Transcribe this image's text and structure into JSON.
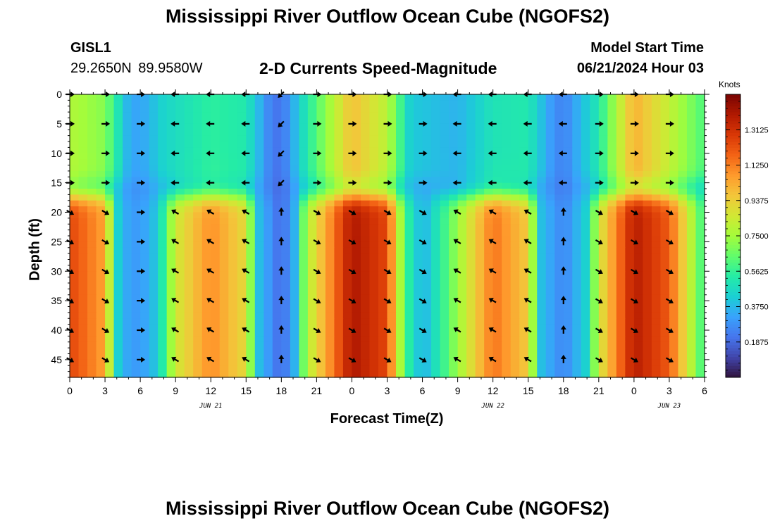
{
  "header": {
    "title": "Mississippi River Outflow Ocean Cube (NGOFS2)",
    "station_id": "GISL1",
    "station_coords": "29.2650N  89.9580W",
    "subtitle": "2-D Currents Speed-Magnitude",
    "model_label": "Model Start Time",
    "model_time": "06/21/2024 Hour 03"
  },
  "footer": {
    "title": "Mississippi River Outflow Ocean Cube (NGOFS2)"
  },
  "chart_data": {
    "type": "heatmap",
    "title": "2-D Currents Speed-Magnitude",
    "xlabel": "Forecast Time(Z)",
    "ylabel": "Depth (ft)",
    "colorbar_unit": "Knots",
    "x_range_hours": [
      0,
      54
    ],
    "y_range_ft": [
      0,
      48
    ],
    "x_ticks": [
      0,
      3,
      6,
      9,
      12,
      15,
      18,
      21,
      24,
      27,
      30,
      33,
      36,
      39,
      42,
      45,
      48,
      51,
      54
    ],
    "x_tick_labels": [
      "0",
      "3",
      "6",
      "9",
      "12",
      "15",
      "18",
      "21",
      "0",
      "3",
      "6",
      "9",
      "12",
      "15",
      "18",
      "21",
      "0",
      "3",
      "6"
    ],
    "y_ticks": [
      0,
      5,
      10,
      15,
      20,
      25,
      30,
      35,
      40,
      45
    ],
    "y_tick_labels": [
      "0",
      "5",
      "10",
      "15",
      "20",
      "25",
      "30",
      "35",
      "40",
      "45"
    ],
    "day_labels": [
      {
        "hour": 12,
        "label": "JUN 21"
      },
      {
        "hour": 36,
        "label": "JUN 22"
      },
      {
        "hour": 51,
        "label": "JUN 23"
      }
    ],
    "colorbar_range": [
      0.0,
      1.5
    ],
    "colorbar_ticks": [
      0.1875,
      0.375,
      0.5625,
      0.75,
      0.9375,
      1.125,
      1.3125
    ],
    "colorbar_tick_labels": [
      "0.1875",
      "0.3750",
      "0.5625",
      "0.7500",
      "0.9375",
      "1.1250",
      "1.3125"
    ],
    "colormap": [
      "#30123b",
      "#4145ab",
      "#4675ed",
      "#39a2fc",
      "#1bcfd4",
      "#24eca6",
      "#61fc6c",
      "#a4fc3b",
      "#d1e834",
      "#f3c63a",
      "#fe9b2d",
      "#f36315",
      "#d93806",
      "#b11901",
      "#7a0402"
    ],
    "surface_layer_speed_knots": [
      {
        "hour": 0,
        "speed": 0.78
      },
      {
        "hour": 3,
        "speed": 0.7
      },
      {
        "hour": 5,
        "speed": 0.35
      },
      {
        "hour": 6,
        "speed": 0.32
      },
      {
        "hour": 8,
        "speed": 0.45
      },
      {
        "hour": 12,
        "speed": 0.55
      },
      {
        "hour": 15,
        "speed": 0.52
      },
      {
        "hour": 17,
        "speed": 0.25
      },
      {
        "hour": 18,
        "speed": 0.2
      },
      {
        "hour": 20,
        "speed": 0.5
      },
      {
        "hour": 24,
        "speed": 0.98
      },
      {
        "hour": 27,
        "speed": 0.8
      },
      {
        "hour": 29,
        "speed": 0.42
      },
      {
        "hour": 33,
        "speed": 0.36
      },
      {
        "hour": 36,
        "speed": 0.5
      },
      {
        "hour": 39,
        "speed": 0.52
      },
      {
        "hour": 41,
        "speed": 0.3
      },
      {
        "hour": 42,
        "speed": 0.24
      },
      {
        "hour": 45,
        "speed": 0.52
      },
      {
        "hour": 48,
        "speed": 1.02
      },
      {
        "hour": 51,
        "speed": 0.82
      },
      {
        "hour": 54,
        "speed": 0.6
      }
    ],
    "lower_layer_speed_knots": [
      {
        "hour": 0,
        "speed": 1.25
      },
      {
        "hour": 3,
        "speed": 1.05
      },
      {
        "hour": 4,
        "speed": 0.45
      },
      {
        "hour": 5,
        "speed": 0.32
      },
      {
        "hour": 6,
        "speed": 0.3
      },
      {
        "hour": 7.5,
        "speed": 0.42
      },
      {
        "hour": 9,
        "speed": 0.85
      },
      {
        "hour": 12,
        "speed": 1.1
      },
      {
        "hour": 15,
        "speed": 0.9
      },
      {
        "hour": 16,
        "speed": 0.4
      },
      {
        "hour": 18,
        "speed": 0.18
      },
      {
        "hour": 19.5,
        "speed": 0.42
      },
      {
        "hour": 20,
        "speed": 0.75
      },
      {
        "hour": 24,
        "speed": 1.4
      },
      {
        "hour": 27,
        "speed": 1.25
      },
      {
        "hour": 28.5,
        "speed": 0.6
      },
      {
        "hour": 30,
        "speed": 0.35
      },
      {
        "hour": 32,
        "speed": 0.6
      },
      {
        "hour": 36,
        "speed": 1.15
      },
      {
        "hour": 39,
        "speed": 0.95
      },
      {
        "hour": 40,
        "speed": 0.4
      },
      {
        "hour": 42,
        "speed": 0.25
      },
      {
        "hour": 44,
        "speed": 0.45
      },
      {
        "hour": 45,
        "speed": 0.85
      },
      {
        "hour": 48,
        "speed": 1.38
      },
      {
        "hour": 51,
        "speed": 1.2
      },
      {
        "hour": 54,
        "speed": 0.55
      }
    ],
    "vector_hours": [
      0,
      3,
      6,
      9,
      12,
      15,
      18,
      21,
      24,
      27,
      30,
      33,
      36,
      39,
      42,
      45,
      48,
      51
    ],
    "vector_depths_ft": [
      0,
      5,
      10,
      15,
      20,
      25,
      30,
      35,
      40,
      45
    ],
    "surface_current_direction_deg": [
      90,
      90,
      90,
      270,
      270,
      270,
      225,
      90,
      90,
      90,
      90,
      270,
      270,
      270,
      270,
      90,
      90,
      90
    ],
    "lower_current_direction_deg": [
      120,
      120,
      90,
      300,
      300,
      300,
      0,
      120,
      120,
      120,
      120,
      300,
      300,
      300,
      0,
      120,
      120,
      120
    ]
  }
}
